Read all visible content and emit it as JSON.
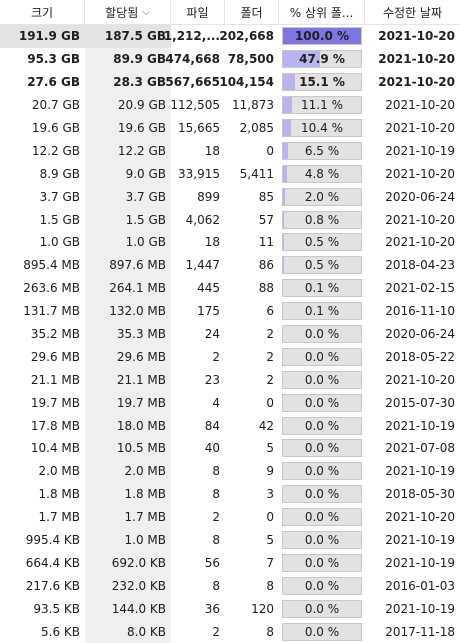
{
  "headers": {
    "size": "크기",
    "allocated": "할당됨",
    "sort_icon": "chevron-down-icon",
    "files": "파일",
    "folders": "폴더",
    "percent_parent": "% 상위 폴...",
    "modified": "수정한 날짜"
  },
  "colors": {
    "bar_fill": "#b7b4ee",
    "bar_fill_strong": "#7c76e0",
    "bar_bg": "#e2e2e2"
  },
  "rows": [
    {
      "size": "191.9 GB",
      "alloc": "187.5 GB",
      "files": "1,212,...",
      "folders": "202,668",
      "pct": "100.0 %",
      "pv": 100.0,
      "date": "2021-10-20",
      "bold": true,
      "sel": true
    },
    {
      "size": "95.3 GB",
      "alloc": "89.9 GB",
      "files": "474,668",
      "folders": "78,500",
      "pct": "47.9 %",
      "pv": 47.9,
      "date": "2021-10-20",
      "bold": true
    },
    {
      "size": "27.6 GB",
      "alloc": "28.3 GB",
      "files": "567,665",
      "folders": "104,154",
      "pct": "15.1 %",
      "pv": 15.1,
      "date": "2021-10-20",
      "bold": true
    },
    {
      "size": "20.7 GB",
      "alloc": "20.9 GB",
      "files": "112,505",
      "folders": "11,873",
      "pct": "11.1 %",
      "pv": 11.1,
      "date": "2021-10-20"
    },
    {
      "size": "19.6 GB",
      "alloc": "19.6 GB",
      "files": "15,665",
      "folders": "2,085",
      "pct": "10.4 %",
      "pv": 10.4,
      "date": "2021-10-20"
    },
    {
      "size": "12.2 GB",
      "alloc": "12.2 GB",
      "files": "18",
      "folders": "0",
      "pct": "6.5 %",
      "pv": 6.5,
      "date": "2021-10-19"
    },
    {
      "size": "8.9 GB",
      "alloc": "9.0 GB",
      "files": "33,915",
      "folders": "5,411",
      "pct": "4.8 %",
      "pv": 4.8,
      "date": "2021-10-20"
    },
    {
      "size": "3.7 GB",
      "alloc": "3.7 GB",
      "files": "899",
      "folders": "85",
      "pct": "2.0 %",
      "pv": 2.0,
      "date": "2020-06-24"
    },
    {
      "size": "1.5 GB",
      "alloc": "1.5 GB",
      "files": "4,062",
      "folders": "57",
      "pct": "0.8 %",
      "pv": 0.8,
      "date": "2021-10-20"
    },
    {
      "size": "1.0 GB",
      "alloc": "1.0 GB",
      "files": "18",
      "folders": "11",
      "pct": "0.5 %",
      "pv": 0.5,
      "date": "2021-10-20"
    },
    {
      "size": "895.4 MB",
      "alloc": "897.6 MB",
      "files": "1,447",
      "folders": "86",
      "pct": "0.5 %",
      "pv": 0.5,
      "date": "2018-04-23"
    },
    {
      "size": "263.6 MB",
      "alloc": "264.1 MB",
      "files": "445",
      "folders": "88",
      "pct": "0.1 %",
      "pv": 0.1,
      "date": "2021-02-15"
    },
    {
      "size": "131.7 MB",
      "alloc": "132.0 MB",
      "files": "175",
      "folders": "6",
      "pct": "0.1 %",
      "pv": 0.1,
      "date": "2016-11-10"
    },
    {
      "size": "35.2 MB",
      "alloc": "35.3 MB",
      "files": "24",
      "folders": "2",
      "pct": "0.0 %",
      "pv": 0.0,
      "date": "2020-06-24"
    },
    {
      "size": "29.6 MB",
      "alloc": "29.6 MB",
      "files": "2",
      "folders": "2",
      "pct": "0.0 %",
      "pv": 0.0,
      "date": "2018-05-22"
    },
    {
      "size": "21.1 MB",
      "alloc": "21.1 MB",
      "files": "23",
      "folders": "2",
      "pct": "0.0 %",
      "pv": 0.0,
      "date": "2021-10-20"
    },
    {
      "size": "19.7 MB",
      "alloc": "19.7 MB",
      "files": "4",
      "folders": "0",
      "pct": "0.0 %",
      "pv": 0.0,
      "date": "2015-07-30"
    },
    {
      "size": "17.8 MB",
      "alloc": "18.0 MB",
      "files": "84",
      "folders": "42",
      "pct": "0.0 %",
      "pv": 0.0,
      "date": "2021-10-19"
    },
    {
      "size": "10.4 MB",
      "alloc": "10.5 MB",
      "files": "40",
      "folders": "5",
      "pct": "0.0 %",
      "pv": 0.0,
      "date": "2021-07-08"
    },
    {
      "size": "2.0 MB",
      "alloc": "2.0 MB",
      "files": "8",
      "folders": "9",
      "pct": "0.0 %",
      "pv": 0.0,
      "date": "2021-10-19"
    },
    {
      "size": "1.8 MB",
      "alloc": "1.8 MB",
      "files": "8",
      "folders": "3",
      "pct": "0.0 %",
      "pv": 0.0,
      "date": "2018-05-30"
    },
    {
      "size": "1.7 MB",
      "alloc": "1.7 MB",
      "files": "2",
      "folders": "0",
      "pct": "0.0 %",
      "pv": 0.0,
      "date": "2021-10-20"
    },
    {
      "size": "995.4 KB",
      "alloc": "1.0 MB",
      "files": "8",
      "folders": "5",
      "pct": "0.0 %",
      "pv": 0.0,
      "date": "2021-10-19"
    },
    {
      "size": "664.4 KB",
      "alloc": "692.0 KB",
      "files": "56",
      "folders": "7",
      "pct": "0.0 %",
      "pv": 0.0,
      "date": "2021-10-19"
    },
    {
      "size": "217.6 KB",
      "alloc": "232.0 KB",
      "files": "8",
      "folders": "8",
      "pct": "0.0 %",
      "pv": 0.0,
      "date": "2016-01-03"
    },
    {
      "size": "93.5 KB",
      "alloc": "144.0 KB",
      "files": "36",
      "folders": "120",
      "pct": "0.0 %",
      "pv": 0.0,
      "date": "2021-10-19"
    },
    {
      "size": "5.6 KB",
      "alloc": "8.0 KB",
      "files": "2",
      "folders": "8",
      "pct": "0.0 %",
      "pv": 0.0,
      "date": "2017-11-18"
    }
  ]
}
